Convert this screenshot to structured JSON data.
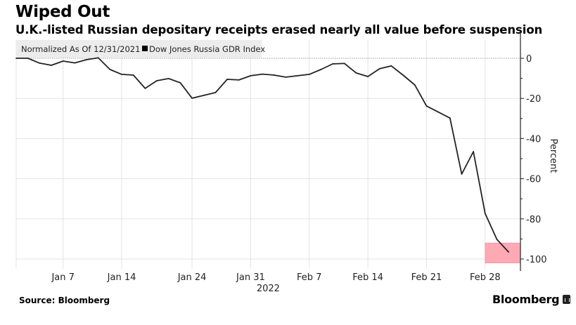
{
  "header": {
    "title": "Wiped Out",
    "subtitle": "U.K.-listed Russian depositary receipts erased nearly all value before suspension"
  },
  "footer": {
    "source": "Source: Bloomberg",
    "brand": "Bloomberg",
    "brand_icon": "bloomberg-chart-icon"
  },
  "chart_data": {
    "type": "line",
    "title": "Wiped Out",
    "subtitle": "U.K.-listed Russian depositary receipts erased nearly all value before suspension",
    "note": "Normalized As Of 12/31/2021",
    "legend": [
      {
        "name": "Dow Jones Russia GDR Index",
        "color": "#000000",
        "placement": "top-left"
      }
    ],
    "xlabel": "2022",
    "ylabel": "Percent",
    "ylim": [
      -104,
      10
    ],
    "y_ticks": [
      0,
      -20,
      -40,
      -60,
      -80,
      -100
    ],
    "x_ticks": [
      {
        "label": "Jan 7",
        "index": 4
      },
      {
        "label": "Jan 14",
        "index": 9
      },
      {
        "label": "Jan 24",
        "index": 15
      },
      {
        "label": "Jan 31",
        "index": 20
      },
      {
        "label": "Feb 7",
        "index": 25
      },
      {
        "label": "Feb 14",
        "index": 30
      },
      {
        "label": "Feb 21",
        "index": 35
      },
      {
        "label": "Feb 28",
        "index": 40
      }
    ],
    "year_label": "2022",
    "grid": true,
    "highlight": {
      "color": "#ff9aa8",
      "from_index": 40,
      "to_index": 42,
      "y_range": [
        -92,
        -102
      ]
    },
    "series": [
      {
        "name": "Dow Jones Russia GDR Index",
        "color": "#000000",
        "x": [
          "Jan 3",
          "Jan 4",
          "Jan 5",
          "Jan 6",
          "Jan 7",
          "Jan 10",
          "Jan 11",
          "Jan 12",
          "Jan 13",
          "Jan 14",
          "Jan 17",
          "Jan 18",
          "Jan 19",
          "Jan 20",
          "Jan 21",
          "Jan 24",
          "Jan 25",
          "Jan 26",
          "Jan 27",
          "Jan 28",
          "Jan 31",
          "Feb 1",
          "Feb 2",
          "Feb 3",
          "Feb 4",
          "Feb 7",
          "Feb 8",
          "Feb 9",
          "Feb 10",
          "Feb 11",
          "Feb 14",
          "Feb 15",
          "Feb 16",
          "Feb 17",
          "Feb 18",
          "Feb 21",
          "Feb 22",
          "Feb 23",
          "Feb 24",
          "Feb 25",
          "Feb 28",
          "Mar 1",
          "Mar 2"
        ],
        "values": [
          0,
          0,
          -2.4,
          -3.5,
          -1.4,
          -2.3,
          -0.7,
          0.2,
          -5.6,
          -8.0,
          -8.4,
          -15.0,
          -11.2,
          -10.1,
          -12.2,
          -19.9,
          -18.5,
          -17.1,
          -10.5,
          -10.8,
          -8.7,
          -7.9,
          -8.4,
          -9.4,
          -8.7,
          -8.0,
          -5.6,
          -2.8,
          -2.6,
          -7.3,
          -9.1,
          -5.2,
          -3.8,
          -8.4,
          -13.3,
          -23.8,
          -26.8,
          -29.8,
          -57.7,
          -46.5,
          -77.3,
          -90.2,
          -96.5
        ]
      }
    ]
  }
}
